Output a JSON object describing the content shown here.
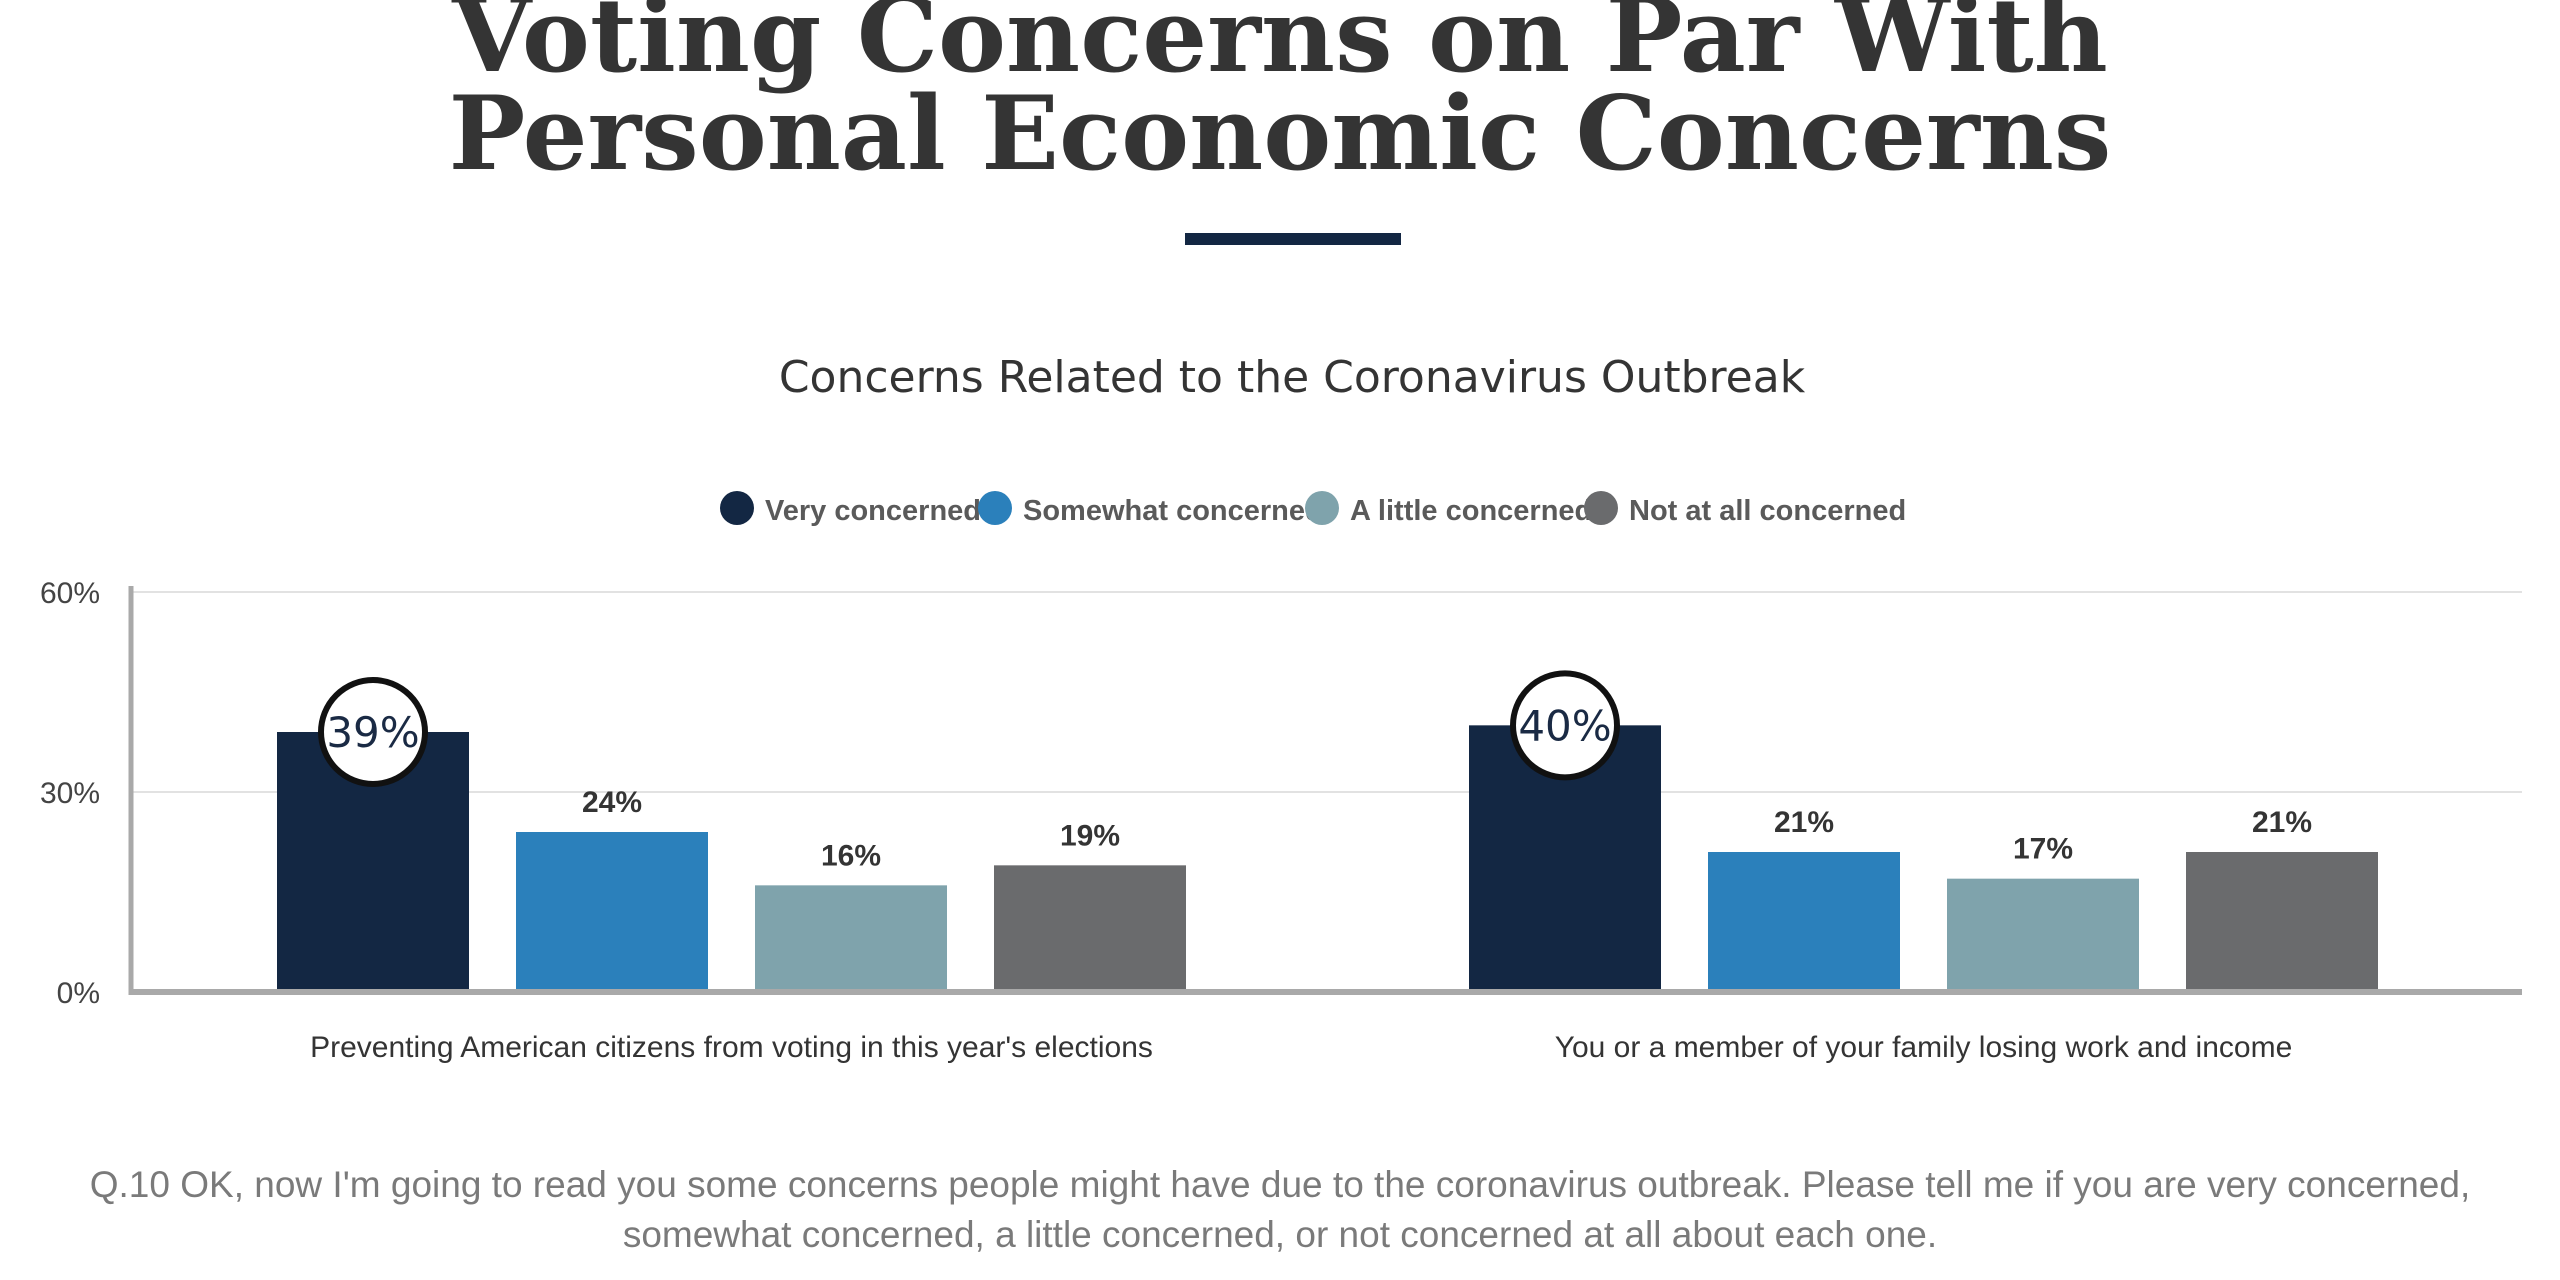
{
  "header": {
    "title_line1": "Voting Concerns on Par With",
    "title_line2": "Personal Economic Concerns"
  },
  "colors": {
    "very": "#132743",
    "somewhat": "#2b80bb",
    "little": "#7fa3ac",
    "not_at_all": "#6a6b6d",
    "divider": "#132743",
    "axis": "#a9a9a9",
    "grid": "#e2e2e2",
    "text": "#343434"
  },
  "chart_data": {
    "type": "bar",
    "title": "Concerns Related to the Coronavirus Outbreak",
    "categories": [
      "Preventing American citizens from voting in this year's elections",
      "You or a member of your family losing work and income"
    ],
    "series": [
      {
        "name": "Very concerned",
        "color_key": "very",
        "values": [
          39,
          40
        ],
        "labels": [
          "39%",
          "40%"
        ],
        "highlight": true
      },
      {
        "name": "Somewhat concerned",
        "color_key": "somewhat",
        "values": [
          24,
          21
        ],
        "labels": [
          "24%",
          "21%"
        ],
        "highlight": false
      },
      {
        "name": "A little concerned",
        "color_key": "little",
        "values": [
          16,
          17
        ],
        "labels": [
          "16%",
          "17%"
        ],
        "highlight": false
      },
      {
        "name": "Not at all concerned",
        "color_key": "not_at_all",
        "values": [
          19,
          21
        ],
        "labels": [
          "19%",
          "21%"
        ],
        "highlight": false
      }
    ],
    "ylim": [
      0,
      60
    ],
    "yticks": [
      0,
      30,
      60
    ],
    "ytick_labels": [
      "0%",
      "30%",
      "60%"
    ],
    "grid": true,
    "legend_position": "top-center",
    "xlabel": "",
    "ylabel": ""
  },
  "footnote": "Q.10 OK, now I'm going to read you some concerns people might have due to the coronavirus outbreak. Please tell me if you are very concerned, somewhat concerned, a little concerned, or not concerned at all about each one."
}
